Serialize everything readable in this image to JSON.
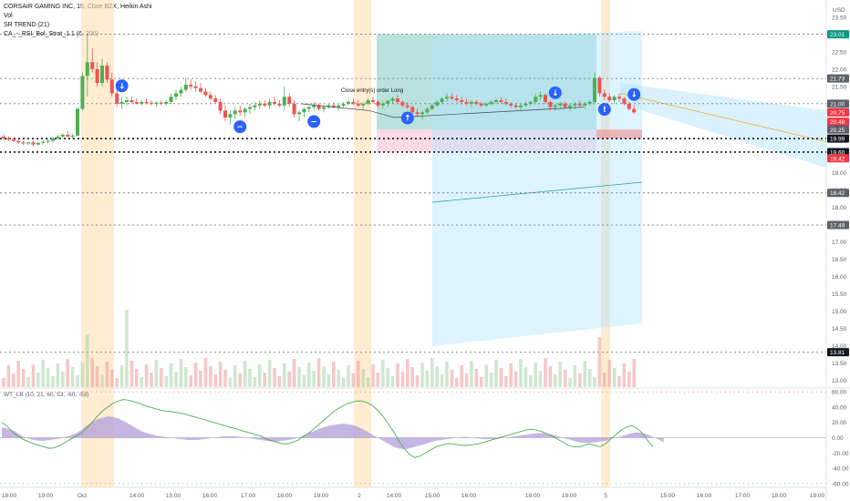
{
  "header": {
    "title": "CORSAIR GAMING INC, 15, Cboe BZX, Heikin Ashi",
    "indicators": [
      "Vol",
      "SR TREND (21)",
      "CA_-_RSI_Bol_Strat_1.1 (6, 200)"
    ],
    "currency": "USD"
  },
  "colors": {
    "up": "#4caf50",
    "down": "#ef5350",
    "wt_line": "#4caf50",
    "wt_fill": "#b39ddb",
    "session": "#ffe0b2",
    "profit_zone": "#80cbc4",
    "loss_zone": "#f8bbd0",
    "forecast": "#b3e5fc",
    "signal": "#2962ff"
  },
  "annotation": {
    "close_label": "Close entry(s) order Long"
  },
  "signals": [
    {
      "icon": "down-arrow-icon",
      "bar": 24
    },
    {
      "icon": "minus-icon",
      "bar": 48
    },
    {
      "icon": "minus-icon",
      "bar": 63
    },
    {
      "icon": "up-arrow-icon",
      "bar": 82
    },
    {
      "icon": "down-arrow-icon",
      "bar": 112
    },
    {
      "icon": "exclamation-icon",
      "bar": 122
    },
    {
      "icon": "down-arrow-icon",
      "bar": 128
    }
  ],
  "chart_data": {
    "type": "candlestick",
    "price_axis": {
      "ticks": [
        "23.50",
        "23.00",
        "22.50",
        "22.00",
        "21.50",
        "21.00",
        "20.50",
        "20.00",
        "19.50",
        "19.00",
        "18.50",
        "18.00",
        "17.50",
        "17.00",
        "16.50",
        "16.00",
        "15.50",
        "15.00",
        "14.50",
        "14.00",
        "13.50",
        "13.00"
      ],
      "range": [
        12.8,
        24.0
      ],
      "tags": [
        {
          "value": "23.01",
          "color": "#089981"
        },
        {
          "value": "21.73",
          "color": "#5d606b"
        },
        {
          "value": "21.00",
          "color": "#5d606b"
        },
        {
          "value": "20.75",
          "color": "#f23645"
        },
        {
          "value": "20.48",
          "color": "#f23645"
        },
        {
          "value": "20.25",
          "color": "#5d606b"
        },
        {
          "value": "19.99",
          "color": "#131722"
        },
        {
          "value": "19.60",
          "color": "#131722"
        },
        {
          "value": "19.42",
          "color": "#f23645"
        },
        {
          "value": "18.42",
          "color": "#5d606b"
        },
        {
          "value": "17.49",
          "color": "#5d606b"
        },
        {
          "value": "13.81",
          "color": "#131722"
        }
      ]
    },
    "time_axis": [
      "18:00",
      "19:00",
      "Oct",
      "14:00",
      "15:00",
      "16:00",
      "17:00",
      "18:00",
      "19:00",
      "2",
      "14:00",
      "15:00",
      "16:00",
      "18:00",
      "19:00",
      "5",
      "15:00",
      "16:00",
      "17:00",
      "18:00",
      "19:00"
    ],
    "level_lines": [
      21.73,
      21.0,
      19.99,
      19.6,
      18.42,
      17.49,
      13.81,
      23.01
    ],
    "candles": [
      {
        "o": 20.05,
        "h": 20.12,
        "l": 19.95,
        "c": 20.0
      },
      {
        "o": 20.0,
        "h": 20.05,
        "l": 19.92,
        "c": 19.96
      },
      {
        "o": 19.96,
        "h": 20.02,
        "l": 19.9,
        "c": 19.92
      },
      {
        "o": 19.92,
        "h": 19.96,
        "l": 19.85,
        "c": 19.88
      },
      {
        "o": 19.88,
        "h": 19.92,
        "l": 19.8,
        "c": 19.85
      },
      {
        "o": 19.85,
        "h": 19.9,
        "l": 19.8,
        "c": 19.88
      },
      {
        "o": 19.88,
        "h": 19.92,
        "l": 19.75,
        "c": 19.82
      },
      {
        "o": 19.82,
        "h": 19.9,
        "l": 19.78,
        "c": 19.87
      },
      {
        "o": 19.87,
        "h": 19.95,
        "l": 19.82,
        "c": 19.9
      },
      {
        "o": 19.9,
        "h": 19.98,
        "l": 19.85,
        "c": 19.93
      },
      {
        "o": 19.93,
        "h": 20.05,
        "l": 19.88,
        "c": 20.0
      },
      {
        "o": 20.0,
        "h": 20.1,
        "l": 19.95,
        "c": 20.05
      },
      {
        "o": 20.05,
        "h": 20.15,
        "l": 20.0,
        "c": 20.1
      },
      {
        "o": 20.1,
        "h": 20.2,
        "l": 20.02,
        "c": 20.05
      },
      {
        "o": 20.05,
        "h": 20.12,
        "l": 19.98,
        "c": 20.08
      },
      {
        "o": 20.08,
        "h": 20.9,
        "l": 20.05,
        "c": 20.85
      },
      {
        "o": 20.85,
        "h": 21.9,
        "l": 20.8,
        "c": 21.8
      },
      {
        "o": 21.8,
        "h": 23.0,
        "l": 21.2,
        "c": 22.2
      },
      {
        "o": 22.2,
        "h": 22.6,
        "l": 21.9,
        "c": 22.0
      },
      {
        "o": 22.0,
        "h": 22.2,
        "l": 21.5,
        "c": 21.6
      },
      {
        "o": 21.6,
        "h": 22.3,
        "l": 21.5,
        "c": 22.1
      },
      {
        "o": 22.1,
        "h": 22.2,
        "l": 21.6,
        "c": 21.7
      },
      {
        "o": 21.7,
        "h": 21.9,
        "l": 21.2,
        "c": 21.3
      },
      {
        "o": 21.3,
        "h": 21.5,
        "l": 20.9,
        "c": 21.0
      },
      {
        "o": 21.0,
        "h": 21.2,
        "l": 20.85,
        "c": 21.05
      },
      {
        "o": 21.05,
        "h": 21.2,
        "l": 20.95,
        "c": 21.1
      },
      {
        "o": 21.1,
        "h": 21.2,
        "l": 21.0,
        "c": 21.05
      },
      {
        "o": 21.05,
        "h": 21.15,
        "l": 20.98,
        "c": 21.0
      },
      {
        "o": 21.0,
        "h": 21.1,
        "l": 20.95,
        "c": 21.05
      },
      {
        "o": 21.05,
        "h": 21.15,
        "l": 20.98,
        "c": 21.02
      },
      {
        "o": 21.02,
        "h": 21.1,
        "l": 20.95,
        "c": 21.0
      },
      {
        "o": 21.0,
        "h": 21.08,
        "l": 20.92,
        "c": 21.03
      },
      {
        "o": 21.03,
        "h": 21.1,
        "l": 20.95,
        "c": 21.0
      },
      {
        "o": 21.0,
        "h": 21.1,
        "l": 20.93,
        "c": 21.05
      },
      {
        "o": 21.05,
        "h": 21.3,
        "l": 21.0,
        "c": 21.2
      },
      {
        "o": 21.2,
        "h": 21.4,
        "l": 21.1,
        "c": 21.3
      },
      {
        "o": 21.3,
        "h": 21.5,
        "l": 21.2,
        "c": 21.4
      },
      {
        "o": 21.4,
        "h": 21.75,
        "l": 21.35,
        "c": 21.55
      },
      {
        "o": 21.55,
        "h": 21.7,
        "l": 21.4,
        "c": 21.5
      },
      {
        "o": 21.5,
        "h": 21.65,
        "l": 21.35,
        "c": 21.45
      },
      {
        "o": 21.45,
        "h": 21.6,
        "l": 21.3,
        "c": 21.35
      },
      {
        "o": 21.35,
        "h": 21.45,
        "l": 21.2,
        "c": 21.25
      },
      {
        "o": 21.25,
        "h": 21.35,
        "l": 21.1,
        "c": 21.15
      },
      {
        "o": 21.15,
        "h": 21.25,
        "l": 21.0,
        "c": 21.05
      },
      {
        "o": 21.05,
        "h": 21.15,
        "l": 20.7,
        "c": 20.8
      },
      {
        "o": 20.8,
        "h": 20.95,
        "l": 20.5,
        "c": 20.6
      },
      {
        "o": 20.6,
        "h": 20.8,
        "l": 20.4,
        "c": 20.7
      },
      {
        "o": 20.7,
        "h": 20.9,
        "l": 20.55,
        "c": 20.8
      },
      {
        "o": 20.8,
        "h": 20.95,
        "l": 20.65,
        "c": 20.75
      },
      {
        "o": 20.75,
        "h": 20.9,
        "l": 20.6,
        "c": 20.85
      },
      {
        "o": 20.85,
        "h": 21.0,
        "l": 20.7,
        "c": 20.9
      },
      {
        "o": 20.9,
        "h": 21.05,
        "l": 20.8,
        "c": 20.95
      },
      {
        "o": 20.95,
        "h": 21.1,
        "l": 20.85,
        "c": 21.0
      },
      {
        "o": 21.0,
        "h": 21.1,
        "l": 20.9,
        "c": 20.95
      },
      {
        "o": 20.95,
        "h": 21.15,
        "l": 20.85,
        "c": 21.05
      },
      {
        "o": 21.05,
        "h": 21.2,
        "l": 20.95,
        "c": 21.0
      },
      {
        "o": 21.0,
        "h": 21.1,
        "l": 20.9,
        "c": 20.95
      },
      {
        "o": 20.95,
        "h": 21.5,
        "l": 20.8,
        "c": 21.2
      },
      {
        "o": 21.2,
        "h": 21.3,
        "l": 20.9,
        "c": 21.0
      },
      {
        "o": 21.0,
        "h": 21.1,
        "l": 20.6,
        "c": 20.7
      },
      {
        "o": 20.7,
        "h": 20.8,
        "l": 20.5,
        "c": 20.75
      },
      {
        "o": 20.75,
        "h": 20.9,
        "l": 20.6,
        "c": 20.85
      },
      {
        "o": 20.85,
        "h": 20.95,
        "l": 20.75,
        "c": 20.9
      },
      {
        "o": 20.9,
        "h": 21.05,
        "l": 20.8,
        "c": 20.95
      },
      {
        "o": 20.95,
        "h": 21.0,
        "l": 20.8,
        "c": 20.85
      },
      {
        "o": 20.85,
        "h": 20.95,
        "l": 20.75,
        "c": 20.9
      },
      {
        "o": 20.9,
        "h": 21.0,
        "l": 20.85,
        "c": 20.95
      },
      {
        "o": 20.95,
        "h": 21.05,
        "l": 20.85,
        "c": 20.9
      },
      {
        "o": 20.9,
        "h": 21.0,
        "l": 20.8,
        "c": 20.95
      },
      {
        "o": 20.95,
        "h": 21.05,
        "l": 20.9,
        "c": 21.0
      },
      {
        "o": 21.0,
        "h": 21.1,
        "l": 20.95,
        "c": 21.05
      },
      {
        "o": 21.05,
        "h": 21.15,
        "l": 20.95,
        "c": 21.0
      },
      {
        "o": 21.0,
        "h": 21.1,
        "l": 20.9,
        "c": 20.95
      },
      {
        "o": 20.95,
        "h": 21.05,
        "l": 20.85,
        "c": 21.0
      },
      {
        "o": 21.0,
        "h": 21.15,
        "l": 20.95,
        "c": 21.1
      },
      {
        "o": 21.1,
        "h": 21.2,
        "l": 21.0,
        "c": 21.05
      },
      {
        "o": 21.05,
        "h": 21.1,
        "l": 20.9,
        "c": 20.95
      },
      {
        "o": 20.95,
        "h": 21.05,
        "l": 20.85,
        "c": 21.0
      },
      {
        "o": 21.0,
        "h": 21.12,
        "l": 20.9,
        "c": 21.08
      },
      {
        "o": 21.08,
        "h": 21.2,
        "l": 21.0,
        "c": 21.15
      },
      {
        "o": 21.15,
        "h": 21.25,
        "l": 21.0,
        "c": 21.05
      },
      {
        "o": 21.05,
        "h": 21.1,
        "l": 20.9,
        "c": 20.95
      },
      {
        "o": 20.95,
        "h": 21.05,
        "l": 20.85,
        "c": 20.9
      },
      {
        "o": 20.9,
        "h": 20.95,
        "l": 20.7,
        "c": 20.75
      },
      {
        "o": 20.75,
        "h": 20.85,
        "l": 20.6,
        "c": 20.7
      },
      {
        "o": 20.7,
        "h": 20.8,
        "l": 20.55,
        "c": 20.75
      },
      {
        "o": 20.75,
        "h": 20.9,
        "l": 20.7,
        "c": 20.85
      },
      {
        "o": 20.85,
        "h": 21.0,
        "l": 20.8,
        "c": 20.95
      },
      {
        "o": 20.95,
        "h": 21.1,
        "l": 20.9,
        "c": 21.05
      },
      {
        "o": 21.05,
        "h": 21.2,
        "l": 21.0,
        "c": 21.15
      },
      {
        "o": 21.15,
        "h": 21.3,
        "l": 21.05,
        "c": 21.2
      },
      {
        "o": 21.2,
        "h": 21.3,
        "l": 21.1,
        "c": 21.15
      },
      {
        "o": 21.15,
        "h": 21.25,
        "l": 21.05,
        "c": 21.1
      },
      {
        "o": 21.1,
        "h": 21.2,
        "l": 21.0,
        "c": 21.05
      },
      {
        "o": 21.05,
        "h": 21.15,
        "l": 20.95,
        "c": 21.0
      },
      {
        "o": 21.0,
        "h": 21.1,
        "l": 20.9,
        "c": 21.05
      },
      {
        "o": 21.05,
        "h": 21.1,
        "l": 20.95,
        "c": 21.0
      },
      {
        "o": 21.0,
        "h": 21.05,
        "l": 20.9,
        "c": 20.95
      },
      {
        "o": 20.95,
        "h": 21.05,
        "l": 20.9,
        "c": 21.0
      },
      {
        "o": 21.0,
        "h": 21.1,
        "l": 20.95,
        "c": 21.05
      },
      {
        "o": 21.05,
        "h": 21.15,
        "l": 21.0,
        "c": 21.1
      },
      {
        "o": 21.1,
        "h": 21.2,
        "l": 21.0,
        "c": 21.05
      },
      {
        "o": 21.05,
        "h": 21.15,
        "l": 20.95,
        "c": 21.0
      },
      {
        "o": 21.0,
        "h": 21.05,
        "l": 20.9,
        "c": 20.95
      },
      {
        "o": 20.95,
        "h": 21.0,
        "l": 20.85,
        "c": 20.9
      },
      {
        "o": 20.9,
        "h": 21.0,
        "l": 20.8,
        "c": 20.95
      },
      {
        "o": 20.95,
        "h": 21.05,
        "l": 20.9,
        "c": 21.0
      },
      {
        "o": 21.0,
        "h": 21.1,
        "l": 20.95,
        "c": 21.05
      },
      {
        "o": 21.05,
        "h": 21.3,
        "l": 21.0,
        "c": 21.2
      },
      {
        "o": 21.2,
        "h": 21.35,
        "l": 21.1,
        "c": 21.25
      },
      {
        "o": 21.25,
        "h": 21.3,
        "l": 21.0,
        "c": 21.05
      },
      {
        "o": 21.05,
        "h": 21.1,
        "l": 20.8,
        "c": 20.9
      },
      {
        "o": 20.9,
        "h": 21.0,
        "l": 20.8,
        "c": 20.95
      },
      {
        "o": 20.95,
        "h": 21.05,
        "l": 20.85,
        "c": 21.0
      },
      {
        "o": 21.0,
        "h": 21.05,
        "l": 20.85,
        "c": 20.9
      },
      {
        "o": 20.9,
        "h": 21.0,
        "l": 20.8,
        "c": 20.95
      },
      {
        "o": 20.95,
        "h": 21.05,
        "l": 20.85,
        "c": 21.0
      },
      {
        "o": 21.0,
        "h": 21.1,
        "l": 20.9,
        "c": 20.95
      },
      {
        "o": 20.95,
        "h": 21.05,
        "l": 20.85,
        "c": 21.0
      },
      {
        "o": 21.0,
        "h": 21.1,
        "l": 20.95,
        "c": 21.05
      },
      {
        "o": 21.05,
        "h": 21.9,
        "l": 21.0,
        "c": 21.75
      },
      {
        "o": 21.75,
        "h": 21.8,
        "l": 21.2,
        "c": 21.3
      },
      {
        "o": 21.3,
        "h": 21.4,
        "l": 21.1,
        "c": 21.2
      },
      {
        "o": 21.2,
        "h": 21.3,
        "l": 21.05,
        "c": 21.1
      },
      {
        "o": 21.1,
        "h": 21.25,
        "l": 21.0,
        "c": 21.2
      },
      {
        "o": 21.2,
        "h": 21.3,
        "l": 21.05,
        "c": 21.15
      },
      {
        "o": 21.15,
        "h": 21.2,
        "l": 20.95,
        "c": 21.0
      },
      {
        "o": 21.0,
        "h": 21.05,
        "l": 20.8,
        "c": 20.85
      },
      {
        "o": 20.85,
        "h": 20.95,
        "l": 20.7,
        "c": 20.75
      }
    ],
    "wt_axis": [
      "60.00",
      "40.00",
      "20.00",
      "0.00",
      "-20.00",
      "-40.00",
      "-60.00"
    ],
    "wt_range": [
      -65,
      65
    ],
    "wt_label": "WT_LB (10, 21, 60, 53, -60, -53)",
    "wt1": [
      20,
      15,
      8,
      2,
      -2,
      -5,
      -8,
      -10,
      -12,
      -14,
      -13,
      -10,
      -6,
      -2,
      2,
      6,
      12,
      20,
      28,
      35,
      40,
      45,
      48,
      50,
      49,
      47,
      45,
      42,
      40,
      38,
      36,
      35,
      34,
      33,
      32,
      30,
      28,
      26,
      24,
      22,
      20,
      18,
      16,
      14,
      12,
      10,
      8,
      6,
      4,
      2,
      -2,
      -4,
      -6,
      -8,
      -8,
      -6,
      -3,
      2,
      6,
      12,
      18,
      24,
      30,
      36,
      40,
      44,
      46,
      48,
      48,
      46,
      42,
      36,
      28,
      18,
      8,
      -4,
      -14,
      -22,
      -26,
      -24,
      -20,
      -16,
      -12,
      -10,
      -8,
      -8,
      -9,
      -10,
      -10,
      -9,
      -8,
      -6,
      -4,
      -2,
      0,
      2,
      4,
      6,
      8,
      10,
      11,
      10,
      8,
      5,
      2,
      -2,
      -6,
      -10,
      -12,
      -12,
      -10,
      -8,
      -10,
      -12,
      -8,
      -2,
      4,
      10,
      14,
      16,
      12,
      6,
      -4,
      -12
    ],
    "wt_fill": [
      14,
      12,
      10,
      6,
      2,
      -1,
      -3,
      -4,
      -4,
      -3,
      -2,
      -1,
      1,
      3,
      6,
      10,
      16,
      20,
      24,
      26,
      28,
      27,
      25,
      22,
      18,
      14,
      10,
      7,
      5,
      3,
      2,
      1,
      0,
      -1,
      -2,
      -3,
      -3,
      -3,
      -2,
      -1,
      0,
      1,
      2,
      2,
      2,
      1,
      0,
      -1,
      -2,
      -3,
      -4,
      -5,
      -5,
      -4,
      -3,
      -2,
      0,
      3,
      6,
      9,
      12,
      14,
      16,
      17,
      18,
      18,
      17,
      15,
      12,
      8,
      4,
      0,
      -4,
      -8,
      -12,
      -14,
      -15,
      -14,
      -12,
      -10,
      -8,
      -6,
      -4,
      -3,
      -2,
      -1,
      0,
      1,
      1,
      0,
      -1,
      -2,
      -2,
      -2,
      -1,
      0,
      1,
      2,
      3,
      4,
      5,
      6,
      6,
      5,
      4,
      2,
      0,
      -2,
      -4,
      -6,
      -7,
      -7,
      -6,
      -5,
      -4,
      -2,
      0,
      2,
      4,
      6,
      7,
      6,
      4,
      1,
      -2,
      -6
    ]
  }
}
